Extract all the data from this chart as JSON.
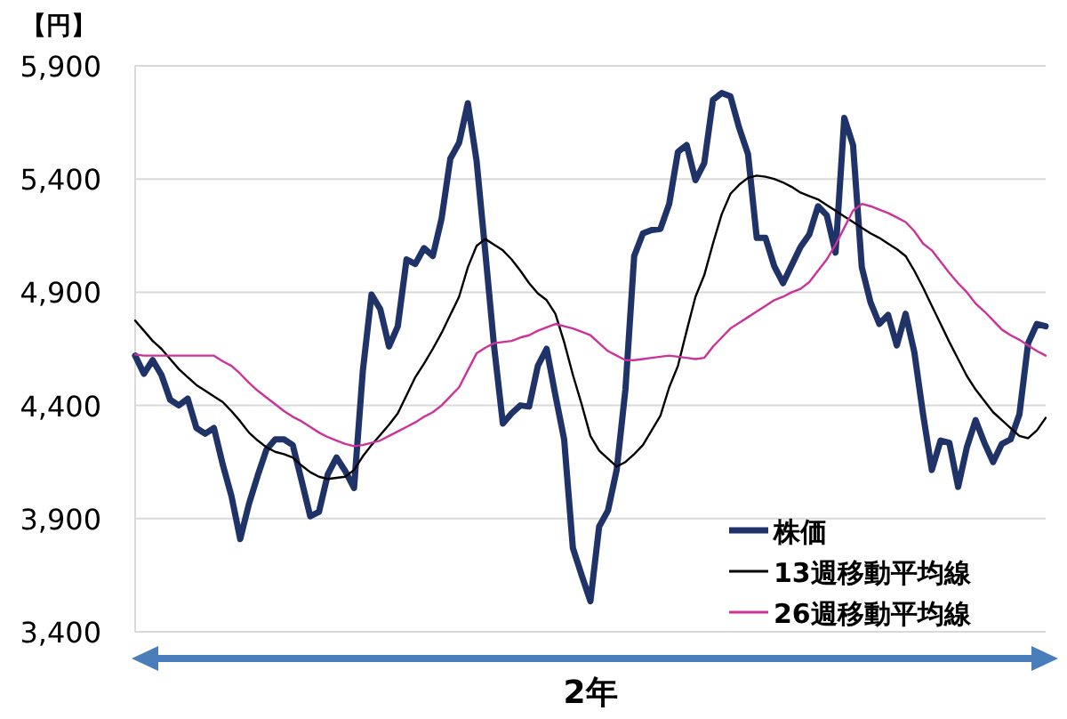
{
  "chart_data": {
    "type": "line",
    "ylabel": "【円】",
    "categories": [
      null,
      null,
      null,
      null,
      null,
      null,
      null,
      null,
      null,
      null,
      null,
      null,
      null,
      null,
      null,
      null,
      null,
      null,
      null,
      null,
      null,
      null,
      null,
      null,
      null,
      null,
      null,
      null,
      null,
      null,
      null,
      null,
      null,
      null,
      null,
      null,
      null,
      null,
      null,
      null,
      null,
      null,
      null,
      null,
      null,
      null,
      null,
      null,
      null,
      null,
      null,
      null,
      null,
      null,
      null,
      null,
      null,
      null,
      null,
      null,
      null,
      null,
      null,
      null,
      null,
      null,
      null,
      null,
      null,
      null,
      null,
      null,
      null,
      null,
      null,
      null,
      null,
      null,
      null,
      null,
      null,
      null,
      null,
      null,
      null,
      null,
      null,
      null,
      null,
      null,
      null,
      null,
      null,
      null,
      null,
      null,
      null,
      null,
      null,
      null,
      null,
      null,
      null,
      null,
      null
    ],
    "ylim": [
      3400,
      5900
    ],
    "yticks": [
      {
        "value": 3400,
        "label": "3,400"
      },
      {
        "value": 3900,
        "label": "3,900"
      },
      {
        "value": 4400,
        "label": "4,400"
      },
      {
        "value": 4900,
        "label": "4,900"
      },
      {
        "value": 5400,
        "label": "5,400"
      },
      {
        "value": 5900,
        "label": "5,900"
      }
    ],
    "grid": "y",
    "legend": "bottom right",
    "tick_labels": "y",
    "marker": "none",
    "line_style": "solid",
    "annotations": [
      "2年"
    ],
    "series": [
      {
        "name": "株価",
        "color": "#1f3368",
        "values": [
          4620,
          4540,
          4600,
          4535,
          4425,
          4400,
          4430,
          4300,
          4275,
          4300,
          4140,
          4000,
          3810,
          3965,
          4090,
          4205,
          4250,
          4250,
          4225,
          4070,
          3910,
          3930,
          4095,
          4170,
          4110,
          4035,
          4550,
          4890,
          4825,
          4660,
          4750,
          5045,
          5025,
          5095,
          5060,
          5225,
          5490,
          5560,
          5735,
          5480,
          5075,
          4660,
          4320,
          4365,
          4400,
          4395,
          4575,
          4650,
          4445,
          4250,
          3770,
          3650,
          3535,
          3865,
          3935,
          4115,
          4470,
          5060,
          5160,
          5175,
          5180,
          5290,
          5520,
          5550,
          5395,
          5470,
          5750,
          5780,
          5765,
          5625,
          5510,
          5140,
          5140,
          5015,
          4940,
          5020,
          5100,
          5155,
          5280,
          5240,
          5075,
          5670,
          5550,
          5010,
          4855,
          4760,
          4800,
          4665,
          4805,
          4635,
          4360,
          4115,
          4245,
          4235,
          4040,
          4215,
          4335,
          4235,
          4150,
          4230,
          4250,
          4360,
          4675,
          4760,
          4750
        ]
      },
      {
        "name": "13週移動平均線",
        "color": "#000000",
        "values": [
          4775,
          4730,
          4685,
          4650,
          4605,
          4560,
          4525,
          4490,
          4465,
          4440,
          4415,
          4375,
          4330,
          4280,
          4245,
          4215,
          4195,
          4185,
          4170,
          4135,
          4105,
          4085,
          4075,
          4080,
          4085,
          4115,
          4175,
          4225,
          4270,
          4315,
          4365,
          4445,
          4525,
          4585,
          4650,
          4720,
          4800,
          4880,
          5010,
          5105,
          5135,
          5110,
          5085,
          5045,
          4995,
          4940,
          4895,
          4865,
          4805,
          4680,
          4535,
          4405,
          4265,
          4200,
          4165,
          4130,
          4150,
          4185,
          4225,
          4290,
          4355,
          4480,
          4575,
          4730,
          4880,
          4975,
          5115,
          5245,
          5335,
          5375,
          5405,
          5415,
          5410,
          5400,
          5385,
          5365,
          5340,
          5325,
          5310,
          5285,
          5260,
          5235,
          5210,
          5185,
          5160,
          5140,
          5115,
          5090,
          5060,
          4995,
          4920,
          4840,
          4760,
          4680,
          4605,
          4530,
          4470,
          4420,
          4370,
          4335,
          4300,
          4265,
          4255,
          4290,
          4345
        ]
      },
      {
        "name": "26週移動平均線",
        "color": "#cc3399",
        "values": [
          4625,
          4620,
          4620,
          4620,
          4620,
          4620,
          4620,
          4620,
          4620,
          4620,
          4595,
          4575,
          4540,
          4500,
          4465,
          4435,
          4405,
          4375,
          4350,
          4330,
          4305,
          4280,
          4260,
          4245,
          4230,
          4220,
          4225,
          4235,
          4245,
          4265,
          4285,
          4305,
          4325,
          4350,
          4370,
          4400,
          4440,
          4480,
          4555,
          4630,
          4655,
          4675,
          4680,
          4685,
          4700,
          4710,
          4730,
          4745,
          4760,
          4750,
          4740,
          4725,
          4710,
          4675,
          4640,
          4620,
          4600,
          4600,
          4605,
          4610,
          4615,
          4620,
          4615,
          4610,
          4605,
          4610,
          4660,
          4700,
          4740,
          4765,
          4790,
          4815,
          4840,
          4865,
          4880,
          4900,
          4915,
          4945,
          4995,
          5045,
          5110,
          5185,
          5260,
          5290,
          5280,
          5265,
          5250,
          5230,
          5210,
          5170,
          5115,
          5085,
          5035,
          4985,
          4940,
          4900,
          4850,
          4815,
          4775,
          4735,
          4710,
          4690,
          4665,
          4640,
          4620
        ]
      }
    ]
  }
}
